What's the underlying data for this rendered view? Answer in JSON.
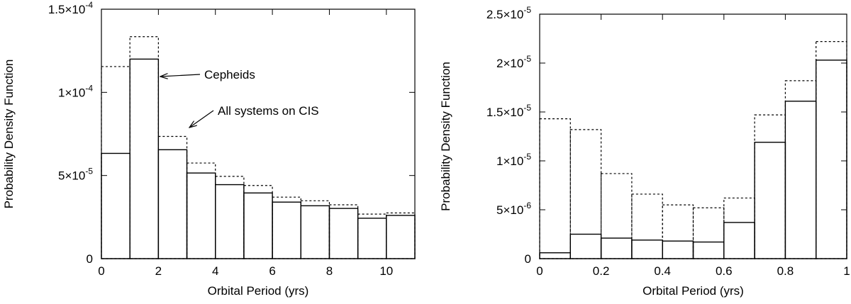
{
  "chart_data": [
    {
      "type": "bar",
      "xlabel": "Orbital Period (yrs)",
      "ylabel": "Probability Density Function",
      "xlim": [
        0,
        11
      ],
      "ylim": [
        0,
        0.00015
      ],
      "bin_edges": [
        0,
        1,
        2,
        3,
        4,
        5,
        6,
        7,
        8,
        9,
        10,
        11
      ],
      "x_ticks": [
        {
          "value": 0,
          "label": "0"
        },
        {
          "value": 2,
          "label": "2"
        },
        {
          "value": 4,
          "label": "4"
        },
        {
          "value": 6,
          "label": "6"
        },
        {
          "value": 8,
          "label": "8"
        },
        {
          "value": 10,
          "label": "10"
        }
      ],
      "y_ticks": [
        {
          "value": 0,
          "label": "0",
          "mant": "",
          "exp": ""
        },
        {
          "value": 5e-05,
          "label": "5×10^-5",
          "mant": "5",
          "exp": "-5"
        },
        {
          "value": 0.0001,
          "label": "1×10^-4",
          "mant": "1",
          "exp": "-4"
        },
        {
          "value": 0.00015,
          "label": "1.5×10^-4",
          "mant": "1.5",
          "exp": "-4"
        }
      ],
      "series": [
        {
          "name": "Cepheids",
          "style": "solid",
          "values": [
            6.33e-05,
            0.00012,
            6.55e-05,
            5.15e-05,
            4.45e-05,
            3.95e-05,
            3.4e-05,
            3.18e-05,
            3.02e-05,
            2.43e-05,
            2.6e-05
          ]
        },
        {
          "name": "All systems on CIS",
          "style": "dotted",
          "values": [
            0.0001155,
            0.0001335,
            7.35e-05,
            5.75e-05,
            4.95e-05,
            4.4e-05,
            3.7e-05,
            3.48e-05,
            3.24e-05,
            2.68e-05,
            2.75e-05
          ]
        }
      ],
      "annotations": [
        {
          "text": "Cepheids",
          "target_series": 0,
          "target_bin": 1
        },
        {
          "text": "All systems on CIS",
          "target_series": 1,
          "target_bin": 2
        }
      ]
    },
    {
      "type": "bar",
      "xlabel": "Orbital Period (yrs)",
      "ylabel": "Probability Density Function",
      "xlim": [
        0,
        1
      ],
      "ylim": [
        0,
        2.5e-05
      ],
      "bin_edges": [
        0,
        0.1,
        0.2,
        0.3,
        0.4,
        0.5,
        0.6,
        0.7,
        0.8,
        0.9,
        1.0
      ],
      "x_ticks": [
        {
          "value": 0,
          "label": "0"
        },
        {
          "value": 0.2,
          "label": "0.2"
        },
        {
          "value": 0.4,
          "label": "0.4"
        },
        {
          "value": 0.6,
          "label": "0.6"
        },
        {
          "value": 0.8,
          "label": "0.8"
        },
        {
          "value": 1.0,
          "label": "1"
        }
      ],
      "y_ticks": [
        {
          "value": 0,
          "label": "0",
          "mant": "",
          "exp": ""
        },
        {
          "value": 5e-06,
          "label": "5×10^-6",
          "mant": "5",
          "exp": "-6"
        },
        {
          "value": 1e-05,
          "label": "1×10^-5",
          "mant": "1",
          "exp": "-5"
        },
        {
          "value": 1.5e-05,
          "label": "1.5×10^-5",
          "mant": "1.5",
          "exp": "-5"
        },
        {
          "value": 2e-05,
          "label": "2×10^-5",
          "mant": "2",
          "exp": "-5"
        },
        {
          "value": 2.5e-05,
          "label": "2.5×10^-5",
          "mant": "2.5",
          "exp": "-5"
        }
      ],
      "series": [
        {
          "name": "Cepheids",
          "style": "solid",
          "values": [
            6e-07,
            2.5e-06,
            2.1e-06,
            1.9e-06,
            1.8e-06,
            1.7e-06,
            3.7e-06,
            1.19e-05,
            1.61e-05,
            2.03e-05
          ]
        },
        {
          "name": "All systems on CIS",
          "style": "dotted",
          "values": [
            1.43e-05,
            1.32e-05,
            8.7e-06,
            6.6e-06,
            5.5e-06,
            5.2e-06,
            6.2e-06,
            1.47e-05,
            1.82e-05,
            2.22e-05
          ]
        }
      ],
      "annotations": []
    }
  ]
}
